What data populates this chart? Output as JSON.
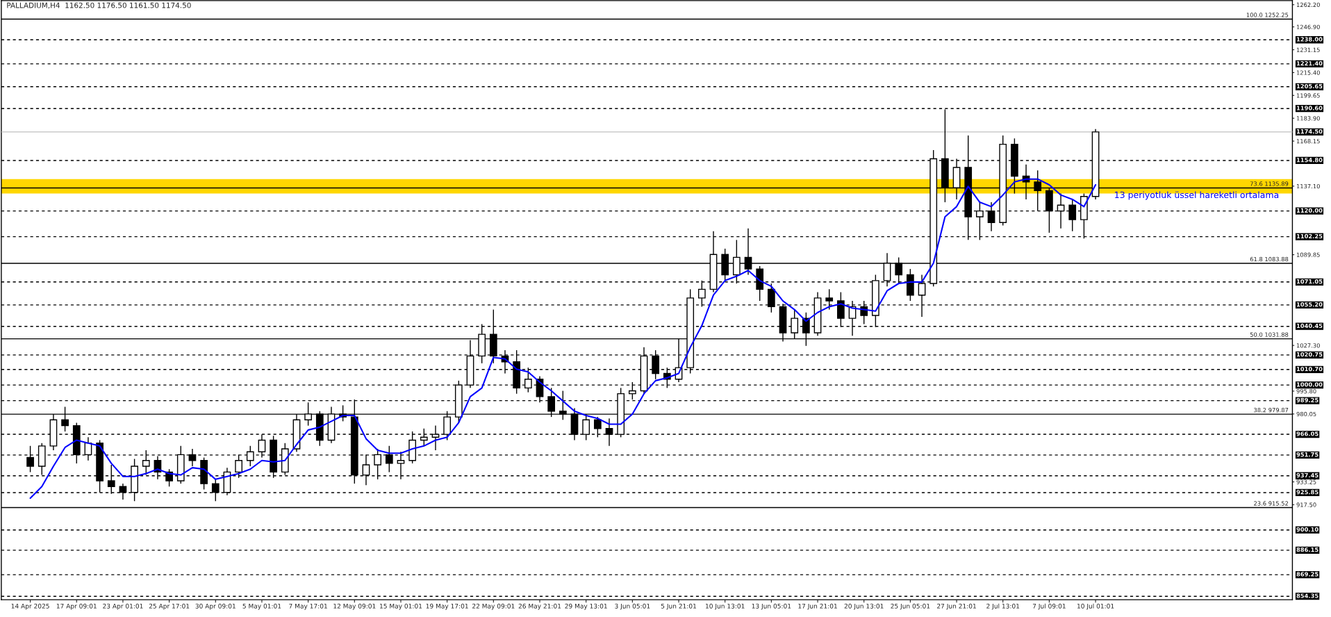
{
  "chart_data": {
    "type": "candlestick",
    "title": "PALLADIUM,H4  1162.50 1176.50 1161.50 1174.50",
    "categories": [
      "14 Apr 2025",
      null,
      null,
      null,
      "17 Apr 09:01",
      null,
      null,
      null,
      "23 Apr 01:01",
      null,
      null,
      null,
      "25 Apr 17:01",
      null,
      null,
      null,
      "30 Apr 09:01",
      null,
      null,
      null,
      "5 May 01:01",
      null,
      null,
      null,
      "7 May 17:01",
      null,
      null,
      null,
      "12 May 09:01",
      null,
      null,
      null,
      "15 May 01:01",
      null,
      null,
      null,
      "19 May 17:01",
      null,
      null,
      null,
      "22 May 09:01",
      null,
      null,
      null,
      "26 May 21:01",
      null,
      null,
      null,
      "29 May 13:01",
      null,
      null,
      null,
      "3 Jun 05:01",
      null,
      null,
      null,
      "5 Jun 21:01",
      null,
      null,
      null,
      "10 Jun 13:01",
      null,
      null,
      null,
      "13 Jun 05:01",
      null,
      null,
      null,
      "17 Jun 21:01",
      null,
      null,
      null,
      "20 Jun 13:01",
      null,
      null,
      null,
      "25 Jun 05:01",
      null,
      null,
      null,
      "27 Jun 21:01",
      null,
      null,
      null,
      "2 Jul 13:01",
      null,
      null,
      null,
      "7 Jul 09:01",
      null,
      null,
      null,
      "10 Jul 01:01"
    ],
    "series": [
      {
        "type": "candlestick",
        "color": "#000000",
        "ohlc": [
          [
            950,
            958,
            940,
            944
          ],
          [
            944,
            960,
            938,
            958
          ],
          [
            958,
            980,
            955,
            976
          ],
          [
            976,
            985,
            968,
            972
          ],
          [
            972,
            974,
            946,
            952
          ],
          [
            952,
            964,
            948,
            960
          ],
          [
            960,
            962,
            926,
            934
          ],
          [
            934,
            945,
            925,
            930
          ],
          [
            930,
            932,
            921,
            926
          ],
          [
            926,
            949,
            920,
            944
          ],
          [
            944,
            955,
            938,
            948
          ],
          [
            948,
            951,
            935,
            940
          ],
          [
            940,
            942,
            930,
            934
          ],
          [
            934,
            958,
            932,
            952
          ],
          [
            952,
            956,
            944,
            948
          ],
          [
            948,
            950,
            928,
            932
          ],
          [
            932,
            935,
            920,
            926
          ],
          [
            926,
            943,
            924,
            940
          ],
          [
            940,
            952,
            936,
            948
          ],
          [
            948,
            958,
            944,
            954
          ],
          [
            954,
            966,
            950,
            962
          ],
          [
            962,
            965,
            936,
            940
          ],
          [
            940,
            960,
            938,
            956
          ],
          [
            956,
            980,
            954,
            976
          ],
          [
            976,
            988,
            972,
            980
          ],
          [
            980,
            982,
            958,
            962
          ],
          [
            962,
            985,
            960,
            980
          ],
          [
            980,
            986,
            975,
            978
          ],
          [
            978,
            990,
            932,
            938
          ],
          [
            938,
            952,
            931,
            945
          ],
          [
            945,
            956,
            935,
            952
          ],
          [
            952,
            958,
            940,
            946
          ],
          [
            946,
            954,
            935,
            948
          ],
          [
            948,
            968,
            946,
            962
          ],
          [
            962,
            970,
            958,
            964
          ],
          [
            964,
            972,
            955,
            966
          ],
          [
            966,
            982,
            962,
            978
          ],
          [
            978,
            1003,
            974,
            1000
          ],
          [
            1000,
            1031,
            998,
            1020
          ],
          [
            1020,
            1042,
            1015,
            1035
          ],
          [
            1035,
            1052,
            1015,
            1020
          ],
          [
            1020,
            1024,
            1008,
            1016
          ],
          [
            1016,
            1024,
            994,
            998
          ],
          [
            998,
            1012,
            995,
            1004
          ],
          [
            1004,
            1006,
            988,
            992
          ],
          [
            992,
            998,
            978,
            982
          ],
          [
            982,
            996,
            976,
            980
          ],
          [
            980,
            984,
            962,
            966
          ],
          [
            966,
            980,
            962,
            976
          ],
          [
            976,
            978,
            964,
            970
          ],
          [
            970,
            977,
            958,
            966
          ],
          [
            966,
            998,
            964,
            994
          ],
          [
            994,
            1002,
            990,
            996
          ],
          [
            996,
            1026,
            994,
            1020
          ],
          [
            1020,
            1024,
            1004,
            1008
          ],
          [
            1008,
            1012,
            998,
            1004
          ],
          [
            1004,
            1032,
            1002,
            1012
          ],
          [
            1012,
            1066,
            1008,
            1060
          ],
          [
            1060,
            1072,
            1054,
            1066
          ],
          [
            1066,
            1106,
            1064,
            1090
          ],
          [
            1090,
            1094,
            1072,
            1076
          ],
          [
            1076,
            1100,
            1070,
            1088
          ],
          [
            1088,
            1108,
            1076,
            1080
          ],
          [
            1080,
            1082,
            1058,
            1066
          ],
          [
            1066,
            1070,
            1050,
            1054
          ],
          [
            1054,
            1056,
            1030,
            1036
          ],
          [
            1036,
            1052,
            1032,
            1046
          ],
          [
            1046,
            1050,
            1027,
            1036
          ],
          [
            1036,
            1064,
            1034,
            1060
          ],
          [
            1060,
            1066,
            1052,
            1058
          ],
          [
            1058,
            1064,
            1040,
            1046
          ],
          [
            1046,
            1058,
            1034,
            1054
          ],
          [
            1054,
            1058,
            1042,
            1048
          ],
          [
            1048,
            1076,
            1040,
            1072
          ],
          [
            1072,
            1091,
            1068,
            1084
          ],
          [
            1084,
            1088,
            1070,
            1076
          ],
          [
            1076,
            1080,
            1058,
            1062
          ],
          [
            1062,
            1076,
            1047,
            1070
          ],
          [
            1070,
            1162,
            1068,
            1156
          ],
          [
            1156,
            1190,
            1126,
            1136
          ],
          [
            1136,
            1156,
            1128,
            1150
          ],
          [
            1150,
            1172,
            1100,
            1116
          ],
          [
            1116,
            1126,
            1100,
            1120
          ],
          [
            1120,
            1126,
            1106,
            1112
          ],
          [
            1112,
            1172,
            1110,
            1166
          ],
          [
            1166,
            1170,
            1132,
            1144
          ],
          [
            1144,
            1152,
            1128,
            1140
          ],
          [
            1140,
            1148,
            1120,
            1134
          ],
          [
            1134,
            1136,
            1105,
            1120
          ],
          [
            1120,
            1132,
            1108,
            1124
          ],
          [
            1124,
            1128,
            1106,
            1114
          ],
          [
            1114,
            1132,
            1101,
            1130
          ],
          [
            1130,
            1176.5,
            1128,
            1174.5
          ]
        ]
      },
      {
        "type": "line",
        "name": "13 periyotluk üssel hareketli ortalama",
        "color": "#0000ff",
        "values": [
          922,
          930,
          944,
          957,
          962,
          960,
          958,
          946,
          937,
          937,
          939,
          942,
          939,
          938,
          943,
          942,
          935,
          937,
          939,
          942,
          948,
          947,
          948,
          959,
          969,
          971,
          975,
          979,
          979,
          963,
          955,
          953,
          953,
          956,
          958,
          962,
          964,
          974,
          992,
          998,
          1019,
          1018,
          1011,
          1009,
          1002,
          996,
          989,
          982,
          979,
          977,
          973,
          973,
          980,
          994,
          1003,
          1005,
          1008,
          1026,
          1041,
          1062,
          1072,
          1075,
          1079,
          1072,
          1068,
          1058,
          1052,
          1044,
          1050,
          1054,
          1056,
          1053,
          1052,
          1051,
          1065,
          1070,
          1071,
          1071,
          1084,
          1116,
          1123,
          1137,
          1126,
          1123,
          1131,
          1140,
          1142,
          1142,
          1138,
          1131,
          1128,
          1123,
          1138
        ]
      }
    ],
    "ylim": [
      852,
      1265
    ],
    "yticks": [
      {
        "value": 1262.2,
        "label": "1262.20"
      },
      {
        "value": 1246.9,
        "label": "1246.90"
      },
      {
        "value": 1231.15,
        "label": "1231.15"
      },
      {
        "value": 1215.4,
        "label": "1215.40"
      },
      {
        "value": 1199.65,
        "label": "1199.65"
      },
      {
        "value": 1183.9,
        "label": "1183.90"
      },
      {
        "value": 1168.15,
        "label": "1168.15"
      },
      {
        "value": 1137.1,
        "label": "1137.10"
      },
      {
        "value": 1089.85,
        "label": "1089.85"
      },
      {
        "value": 1027.3,
        "label": "1027.30"
      },
      {
        "value": 995.8,
        "label": "995.80"
      },
      {
        "value": 980.05,
        "label": "980.05"
      },
      {
        "value": 933.25,
        "label": "933.25"
      },
      {
        "value": 917.5,
        "label": "917.50"
      }
    ],
    "bands": [
      {
        "axis": "y",
        "from": 1132,
        "to": 1142,
        "color": "#ffd700"
      }
    ],
    "ref_lines": [
      {
        "axis": "y",
        "value": 1252.25,
        "label": "100.0 1252.25",
        "color": "#000000",
        "line_style": "solid"
      },
      {
        "axis": "y",
        "value": 1135.89,
        "label": "73.6 1135.89",
        "color": "#000000",
        "line_style": "solid"
      },
      {
        "axis": "y",
        "value": 1083.88,
        "label": "61.8 1083.88",
        "color": "#000000",
        "line_style": "solid"
      },
      {
        "axis": "y",
        "value": 1031.88,
        "label": "50.0 1031.88",
        "color": "#000000",
        "line_style": "solid"
      },
      {
        "axis": "y",
        "value": 979.87,
        "label": "38.2 979.87",
        "color": "#000000",
        "line_style": "solid"
      },
      {
        "axis": "y",
        "value": 915.52,
        "label": "23.6 915.52",
        "color": "#000000",
        "line_style": "solid"
      },
      {
        "axis": "y",
        "value": 1174.5,
        "label": "1174.50",
        "color": "#c0c0c0",
        "line_style": "solid"
      },
      {
        "axis": "y",
        "value": 1238.0,
        "label": "1238.00",
        "color": "#000000",
        "line_style": "dashed"
      },
      {
        "axis": "y",
        "value": 1221.4,
        "label": "1221.40",
        "color": "#000000",
        "line_style": "dashed"
      },
      {
        "axis": "y",
        "value": 1205.65,
        "label": "1205.65",
        "color": "#000000",
        "line_style": "dashed"
      },
      {
        "axis": "y",
        "value": 1190.6,
        "label": "1190.60",
        "color": "#000000",
        "line_style": "dashed"
      },
      {
        "axis": "y",
        "value": 1154.8,
        "label": "1154.80",
        "color": "#000000",
        "line_style": "dashed"
      },
      {
        "axis": "y",
        "value": 1120.0,
        "label": "1120.00",
        "color": "#000000",
        "line_style": "dashed"
      },
      {
        "axis": "y",
        "value": 1102.25,
        "label": "1102.25",
        "color": "#000000",
        "line_style": "dashed"
      },
      {
        "axis": "y",
        "value": 1071.05,
        "label": "1071.05",
        "color": "#000000",
        "line_style": "dashed"
      },
      {
        "axis": "y",
        "value": 1055.2,
        "label": "1055.20",
        "color": "#000000",
        "line_style": "dashed"
      },
      {
        "axis": "y",
        "value": 1040.45,
        "label": "1040.45",
        "color": "#000000",
        "line_style": "dashed"
      },
      {
        "axis": "y",
        "value": 1020.75,
        "label": "1020.75",
        "color": "#000000",
        "line_style": "dashed"
      },
      {
        "axis": "y",
        "value": 1010.7,
        "label": "1010.70",
        "color": "#000000",
        "line_style": "dashed"
      },
      {
        "axis": "y",
        "value": 1000.0,
        "label": "1000.00",
        "color": "#000000",
        "line_style": "dashed"
      },
      {
        "axis": "y",
        "value": 989.25,
        "label": "989.25",
        "color": "#000000",
        "line_style": "dashed"
      },
      {
        "axis": "y",
        "value": 966.05,
        "label": "966.05",
        "color": "#000000",
        "line_style": "dashed"
      },
      {
        "axis": "y",
        "value": 951.75,
        "label": "951.75",
        "color": "#000000",
        "line_style": "dashed"
      },
      {
        "axis": "y",
        "value": 937.45,
        "label": "937.45",
        "color": "#000000",
        "line_style": "dashed"
      },
      {
        "axis": "y",
        "value": 925.85,
        "label": "925.85",
        "color": "#000000",
        "line_style": "dashed"
      },
      {
        "axis": "y",
        "value": 900.1,
        "label": "900.10",
        "color": "#000000",
        "line_style": "dashed"
      },
      {
        "axis": "y",
        "value": 886.15,
        "label": "886.15",
        "color": "#000000",
        "line_style": "dashed"
      },
      {
        "axis": "y",
        "value": 869.25,
        "label": "869.25",
        "color": "#000000",
        "line_style": "dashed"
      },
      {
        "axis": "y",
        "value": 854.35,
        "label": "854.35",
        "color": "#000000",
        "line_style": "dashed"
      }
    ]
  }
}
